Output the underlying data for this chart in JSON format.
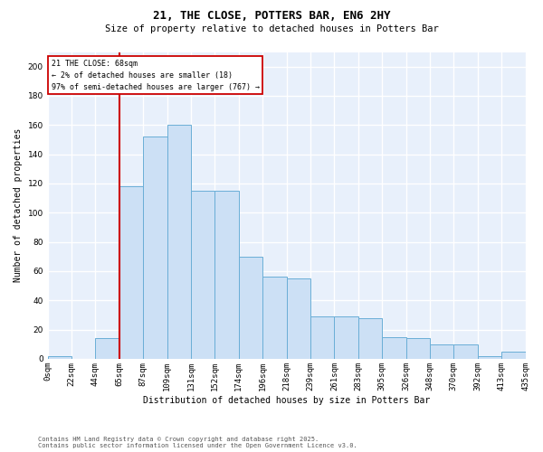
{
  "title1": "21, THE CLOSE, POTTERS BAR, EN6 2HY",
  "title2": "Size of property relative to detached houses in Potters Bar",
  "xlabel": "Distribution of detached houses by size in Potters Bar",
  "ylabel": "Number of detached properties",
  "annotation_text": "21 THE CLOSE: 68sqm\n← 2% of detached houses are smaller (18)\n97% of semi-detached houses are larger (767) →",
  "bar_heights": [
    2,
    0,
    14,
    118,
    152,
    160,
    115,
    115,
    70,
    56,
    55,
    29,
    29,
    28,
    15,
    14,
    10,
    10,
    2,
    5
  ],
  "bin_labels": [
    "0sqm",
    "22sqm",
    "44sqm",
    "65sqm",
    "87sqm",
    "109sqm",
    "131sqm",
    "152sqm",
    "174sqm",
    "196sqm",
    "218sqm",
    "239sqm",
    "261sqm",
    "283sqm",
    "305sqm",
    "326sqm",
    "348sqm",
    "370sqm",
    "392sqm",
    "413sqm",
    "435sqm"
  ],
  "bar_color": "#cce0f5",
  "bar_edge_color": "#6aaed6",
  "vline_x": 3,
  "vline_color": "#cc0000",
  "bg_color": "#e8f0fb",
  "grid_color": "#ffffff",
  "footer": "Contains HM Land Registry data © Crown copyright and database right 2025.\nContains public sector information licensed under the Open Government Licence v3.0.",
  "ylim_max": 210,
  "yticks": [
    0,
    20,
    40,
    60,
    80,
    100,
    120,
    140,
    160,
    180,
    200
  ],
  "title1_fontsize": 9,
  "title2_fontsize": 7.5,
  "ylabel_fontsize": 7,
  "xlabel_fontsize": 7,
  "tick_fontsize": 6.5,
  "annotation_fontsize": 6,
  "footer_fontsize": 5
}
